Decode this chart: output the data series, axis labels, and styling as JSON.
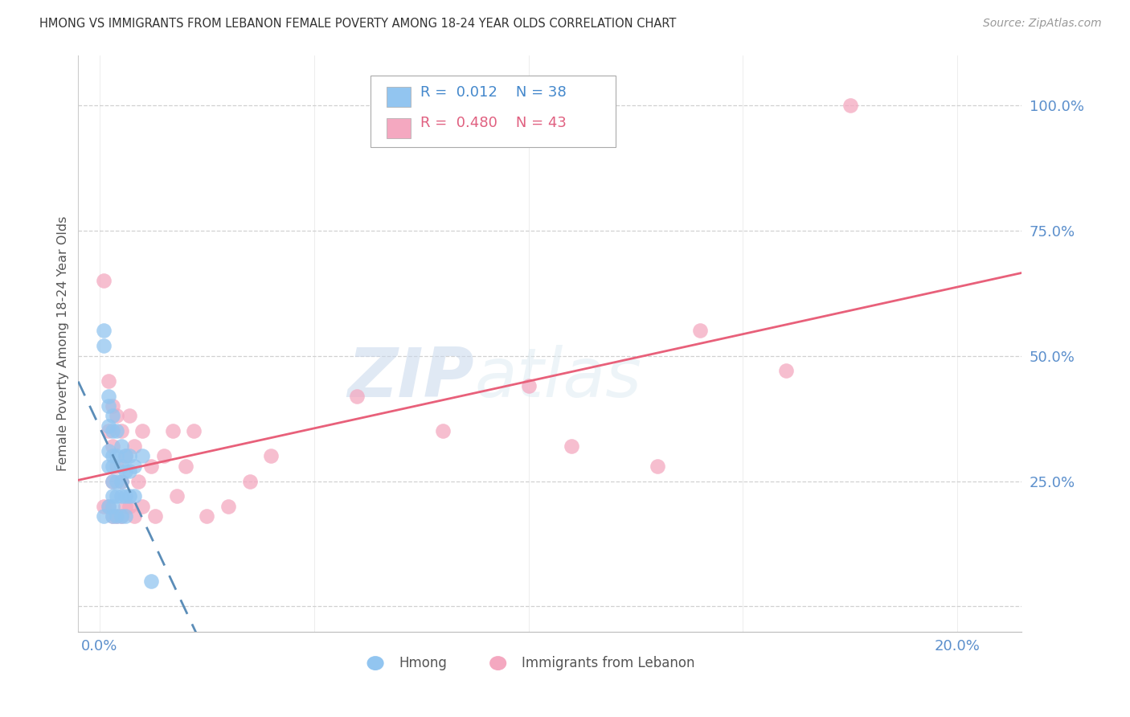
{
  "title": "HMONG VS IMMIGRANTS FROM LEBANON FEMALE POVERTY AMONG 18-24 YEAR OLDS CORRELATION CHART",
  "source": "Source: ZipAtlas.com",
  "ylabel": "Female Poverty Among 18-24 Year Olds",
  "legend_hmong": "Hmong",
  "legend_lebanon": "Immigrants from Lebanon",
  "R_hmong": "0.012",
  "N_hmong": "38",
  "R_lebanon": "0.480",
  "N_lebanon": "43",
  "x_ticks": [
    0.0,
    0.05,
    0.1,
    0.15,
    0.2
  ],
  "x_tick_labels": [
    "0.0%",
    "",
    "",
    "",
    "20.0%"
  ],
  "y_ticks": [
    0.0,
    0.25,
    0.5,
    0.75,
    1.0
  ],
  "y_tick_labels": [
    "",
    "25.0%",
    "50.0%",
    "75.0%",
    "100.0%"
  ],
  "xlim": [
    -0.005,
    0.215
  ],
  "ylim": [
    -0.05,
    1.1
  ],
  "watermark_zip": "ZIP",
  "watermark_atlas": "atlas",
  "color_hmong": "#92C5F0",
  "color_lebanon": "#F4A8C0",
  "line_color_hmong": "#5B8DB8",
  "line_color_lebanon": "#E8607A",
  "hmong_scatter_x": [
    0.001,
    0.001,
    0.001,
    0.002,
    0.002,
    0.002,
    0.002,
    0.002,
    0.002,
    0.003,
    0.003,
    0.003,
    0.003,
    0.003,
    0.003,
    0.003,
    0.003,
    0.004,
    0.004,
    0.004,
    0.004,
    0.004,
    0.005,
    0.005,
    0.005,
    0.005,
    0.005,
    0.006,
    0.006,
    0.006,
    0.006,
    0.007,
    0.007,
    0.007,
    0.008,
    0.008,
    0.01,
    0.012
  ],
  "hmong_scatter_y": [
    0.55,
    0.52,
    0.18,
    0.42,
    0.4,
    0.36,
    0.31,
    0.28,
    0.2,
    0.38,
    0.35,
    0.3,
    0.28,
    0.25,
    0.22,
    0.2,
    0.18,
    0.35,
    0.3,
    0.25,
    0.22,
    0.18,
    0.32,
    0.28,
    0.25,
    0.22,
    0.18,
    0.3,
    0.27,
    0.22,
    0.18,
    0.3,
    0.27,
    0.22,
    0.28,
    0.22,
    0.3,
    0.05
  ],
  "lebanon_scatter_x": [
    0.001,
    0.001,
    0.002,
    0.002,
    0.002,
    0.003,
    0.003,
    0.003,
    0.003,
    0.004,
    0.004,
    0.004,
    0.005,
    0.005,
    0.005,
    0.006,
    0.006,
    0.007,
    0.007,
    0.008,
    0.008,
    0.009,
    0.01,
    0.01,
    0.012,
    0.013,
    0.015,
    0.017,
    0.018,
    0.02,
    0.022,
    0.025,
    0.03,
    0.035,
    0.04,
    0.06,
    0.08,
    0.1,
    0.11,
    0.13,
    0.14,
    0.16,
    0.175
  ],
  "lebanon_scatter_y": [
    0.65,
    0.2,
    0.45,
    0.35,
    0.2,
    0.4,
    0.32,
    0.25,
    0.18,
    0.38,
    0.28,
    0.18,
    0.35,
    0.25,
    0.18,
    0.3,
    0.2,
    0.38,
    0.2,
    0.32,
    0.18,
    0.25,
    0.35,
    0.2,
    0.28,
    0.18,
    0.3,
    0.35,
    0.22,
    0.28,
    0.35,
    0.18,
    0.2,
    0.25,
    0.3,
    0.42,
    0.35,
    0.44,
    0.32,
    0.28,
    0.55,
    0.47,
    1.0
  ]
}
